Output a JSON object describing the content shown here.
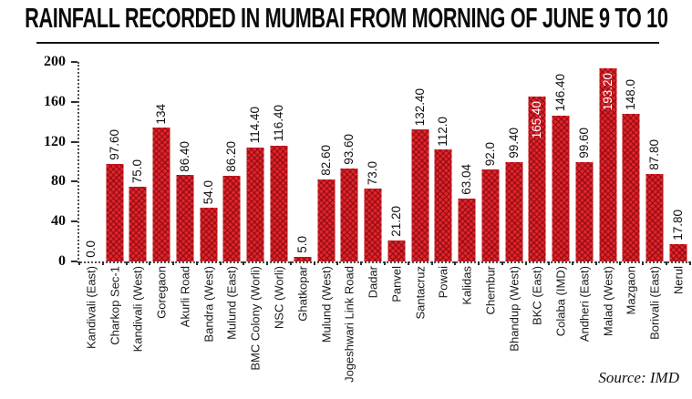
{
  "title": "RAINFALL RECORDED IN MUMBAI FROM MORNING OF JUNE 9 TO 10",
  "source": "Source: IMD",
  "colors": {
    "bar": "#e2242b",
    "bar_pattern": "#80070e",
    "inside_label": "#ffffff",
    "axis": "#4f4f4f",
    "text": "#111111"
  },
  "chart_data": {
    "type": "bar",
    "title": "RAINFALL RECORDED IN MUMBAI FROM MORNING OF JUNE 9 TO 10",
    "xlabel": "",
    "ylabel": "",
    "ylim": [
      0,
      200
    ],
    "yticks": [
      "0",
      "40",
      "80",
      "120",
      "160",
      "200"
    ],
    "grid": false,
    "legend": false,
    "categories": [
      "Kandivali (East)",
      "Charkop Sec-1",
      "Kandivali (West)",
      "Goregaon",
      "Akurli Road",
      "Bandra (West)",
      "Mulund (East)",
      "BMC Colony (Worli)",
      "NSC (Worli)",
      "Ghatkopar",
      "Mulund (West)",
      "Jogeshwari Link Road",
      "Dadar",
      "Panvel",
      "Santacruz",
      "Powai",
      "Kalidas",
      "Chembur",
      "Bhandup (West)",
      "BKC (East)",
      "Colaba (IMD)",
      "Andheri (East)",
      "Malad (West)",
      "Mazgaon",
      "Borivali (East)",
      "Nerul"
    ],
    "values": [
      0.0,
      97.6,
      75.0,
      134,
      86.4,
      54.0,
      86.2,
      114.4,
      116.4,
      5.0,
      82.6,
      93.6,
      73.0,
      21.2,
      132.4,
      112.0,
      63.04,
      92.0,
      99.4,
      165.4,
      146.4,
      99.6,
      193.2,
      148.0,
      87.8,
      17.8
    ],
    "value_labels": [
      "0.0",
      "97.60",
      "75.0",
      "134",
      "86.40",
      "54.0",
      "86.20",
      "114.40",
      "116.40",
      "5.0",
      "82.60",
      "93.60",
      "73.0",
      "21.20",
      "132.40",
      "112.0",
      "63.04",
      "92.0",
      "99.40",
      "165.40",
      "146.40",
      "99.60",
      "193.20",
      "148.0",
      "87.80",
      "17.80"
    ]
  }
}
